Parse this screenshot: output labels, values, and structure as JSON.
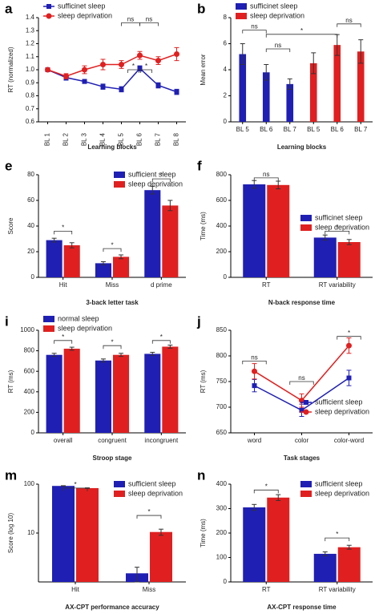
{
  "chart_data": [
    {
      "type": "line",
      "panel": "a",
      "xlabel": "Learning blocks",
      "ylabel": "RT (normalized)",
      "categories": [
        "BL 1",
        "BL 2",
        "BL 3",
        "BL 4",
        "BL 5",
        "BL 6",
        "BL 7",
        "BL 8"
      ],
      "series": [
        {
          "name": "sufficinet sleep",
          "color": "#1f1fb4",
          "marker": "square",
          "values": [
            1.0,
            0.94,
            0.91,
            0.87,
            0.85,
            1.01,
            0.88,
            0.83
          ],
          "errors": [
            0.01,
            0.02,
            0.015,
            0.02,
            0.02,
            0.02,
            0.02,
            0.02
          ]
        },
        {
          "name": "sleep deprivation",
          "color": "#e02020",
          "marker": "circle",
          "values": [
            1.0,
            0.95,
            1.0,
            1.04,
            1.04,
            1.11,
            1.07,
            1.12
          ],
          "errors": [
            0.01,
            0.02,
            0.03,
            0.04,
            0.03,
            0.03,
            0.03,
            0.05
          ]
        }
      ],
      "ylim": [
        0.6,
        1.4
      ],
      "yticks": [
        0.6,
        0.7,
        0.8,
        0.9,
        {
          "value": 1,
          "label": "1.0"
        },
        1.1,
        1.2,
        1.3,
        1.4
      ],
      "legend": "upper left",
      "annotations": [
        "ns",
        "ns",
        "*",
        "*"
      ]
    },
    {
      "type": "bar",
      "panel": "b",
      "xlabel": "Learning blocks",
      "ylabel": "Mean error",
      "categories": [
        "BL 5",
        "BL 6",
        "BL 7",
        "BL 5",
        "BL 6",
        "BL 7"
      ],
      "series": [
        {
          "name": "sufficinet sleep",
          "color": "#1f1fb4",
          "values": [
            5.2,
            3.8,
            2.9,
            null,
            null,
            null
          ],
          "errors": [
            0.8,
            0.6,
            0.4,
            null,
            null,
            null
          ]
        },
        {
          "name": "sleep deprivation",
          "color": "#e02020",
          "values": [
            null,
            null,
            null,
            4.5,
            5.9,
            5.4
          ],
          "errors": [
            null,
            null,
            null,
            0.8,
            0.8,
            0.9
          ]
        }
      ],
      "ylim": [
        0,
        8
      ],
      "yticks": [
        0,
        2,
        4,
        6,
        8
      ],
      "legend": "top",
      "annotations": [
        "ns",
        "ns",
        "*",
        "ns"
      ]
    },
    {
      "type": "bar",
      "panel": "e",
      "xlabel": "3-back letter task",
      "ylabel": "Score",
      "categories": [
        "Hit",
        "Miss",
        "d prime"
      ],
      "series": [
        {
          "name": "sufficient sleep",
          "color": "#1f1fb4",
          "values": [
            29,
            11,
            68
          ],
          "errors": [
            1.5,
            1.2,
            3
          ]
        },
        {
          "name": "sleep deprivation",
          "color": "#e02020",
          "values": [
            25,
            16,
            56
          ],
          "errors": [
            2,
            1.5,
            4
          ]
        }
      ],
      "ylim": [
        0,
        80
      ],
      "yticks": [
        0,
        20,
        40,
        60,
        80
      ],
      "legend": "upper right",
      "annotations": [
        "*",
        "*",
        "*"
      ]
    },
    {
      "type": "bar",
      "panel": "f",
      "xlabel": "N-back response time",
      "ylabel": "Time (ms)",
      "categories": [
        "RT",
        "RT variability"
      ],
      "series": [
        {
          "name": "sufficinet sleep",
          "color": "#1f1fb4",
          "values": [
            725,
            310
          ],
          "errors": [
            30,
            20
          ]
        },
        {
          "name": "sleep deprivation",
          "color": "#e02020",
          "values": [
            720,
            275
          ],
          "errors": [
            30,
            20
          ]
        }
      ],
      "ylim": [
        0,
        800
      ],
      "yticks": [
        0,
        200,
        400,
        600,
        800
      ],
      "legend": "center right",
      "annotations": [
        "ns",
        "*"
      ]
    },
    {
      "type": "bar",
      "panel": "i",
      "xlabel": "Stroop stage",
      "ylabel": "RT (ms)",
      "categories": [
        "overall",
        "congruent",
        "incongruent"
      ],
      "series": [
        {
          "name": "normal sleep",
          "color": "#1f1fb4",
          "values": [
            760,
            705,
            770
          ],
          "errors": [
            15,
            15,
            15
          ]
        },
        {
          "name": "sleep deprivation",
          "color": "#e02020",
          "values": [
            820,
            760,
            840
          ],
          "errors": [
            15,
            15,
            15
          ]
        }
      ],
      "ylim": [
        0,
        1000
      ],
      "yticks": [
        0,
        200,
        400,
        600,
        800,
        1000
      ],
      "legend": "top",
      "annotations": [
        "*",
        "*",
        "*"
      ]
    },
    {
      "type": "line",
      "panel": "j",
      "xlabel": "Task stages",
      "ylabel": "RT (ms)",
      "categories": [
        "word",
        "color",
        "color-word"
      ],
      "series": [
        {
          "name": "sufficient sleep",
          "color": "#1f1fb4",
          "marker": "square",
          "values": [
            742,
            694,
            757
          ],
          "errors": [
            12,
            12,
            15
          ]
        },
        {
          "name": "sleep deprivation",
          "color": "#e02020",
          "marker": "circle",
          "values": [
            770,
            713,
            820
          ],
          "errors": [
            15,
            13,
            15
          ]
        }
      ],
      "ylim": [
        650,
        850
      ],
      "yticks": [
        650,
        700,
        750,
        800,
        850
      ],
      "legend": "lower right",
      "annotations": [
        "ns",
        "ns",
        "*"
      ]
    },
    {
      "type": "bar",
      "panel": "m",
      "xlabel": "AX-CPT performance accuracy",
      "ylabel": "Score (log 10)",
      "log": true,
      "categories": [
        "Hit",
        "Miss"
      ],
      "series": [
        {
          "name": "sufficient sleep",
          "color": "#1f1fb4",
          "values": [
            92,
            1.5
          ],
          "errors": [
            1,
            0.5
          ]
        },
        {
          "name": "sleep deprivation",
          "color": "#e02020",
          "values": [
            83,
            10.5
          ],
          "errors": [
            1,
            1.5
          ]
        }
      ],
      "ylim": [
        1,
        100
      ],
      "yticks": [
        10,
        100
      ],
      "legend": "upper right",
      "annotations": [
        "*",
        "*"
      ]
    },
    {
      "type": "bar",
      "panel": "n",
      "xlabel": "AX-CPT response time",
      "ylabel": "Time (ms)",
      "categories": [
        "RT",
        "RT variability"
      ],
      "series": [
        {
          "name": "sufficient sleep",
          "color": "#1f1fb4",
          "values": [
            305,
            115
          ],
          "errors": [
            12,
            8
          ]
        },
        {
          "name": "sleep deprivation",
          "color": "#e02020",
          "values": [
            345,
            142
          ],
          "errors": [
            12,
            8
          ]
        }
      ],
      "ylim": [
        0,
        400
      ],
      "yticks": [
        0,
        100,
        200,
        300,
        400
      ],
      "legend": "upper right",
      "annotations": [
        "*",
        "*"
      ]
    }
  ]
}
